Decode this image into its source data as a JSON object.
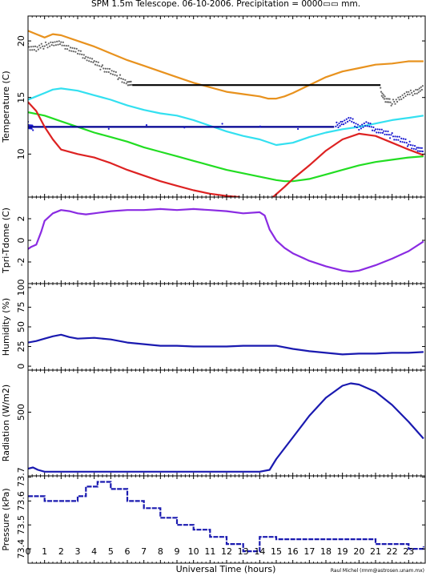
{
  "chart_data": {
    "type": "line",
    "title": "SPM 1.5m Telescope. 06-10-2006. Precipitation = 0000▭▭ mm.",
    "xlabel": "Universal Time (hours)",
    "credit": "Raul Michel (rmm@astrosen.unam.mx)",
    "xlim": [
      0,
      24
    ],
    "xticks": [
      "0",
      "1",
      "2",
      "3",
      "4",
      "5",
      "6",
      "7",
      "8",
      "9",
      "10",
      "11",
      "12",
      "13",
      "14",
      "15",
      "16",
      "17",
      "18",
      "19",
      "20",
      "21",
      "22",
      "23"
    ],
    "panels": [
      {
        "id": "temperature",
        "ylabel": "Temperature (C)",
        "ylim": [
          6.2,
          22.2
        ],
        "yticks": [
          "10",
          "15",
          "20"
        ],
        "ytick_values": [
          10,
          15,
          20
        ],
        "series": [
          {
            "color": "#e8921e",
            "style": "line",
            "x": [
              0,
              0.5,
              1,
              1.5,
              2,
              3,
              4,
              5,
              6,
              7,
              8,
              9,
              10,
              11,
              12,
              13,
              14,
              14.5,
              15,
              15.5,
              16,
              17,
              18,
              19,
              20,
              21,
              22,
              23,
              23.9
            ],
            "y": [
              20.9,
              20.6,
              20.3,
              20.6,
              20.5,
              20.0,
              19.5,
              18.9,
              18.3,
              17.8,
              17.3,
              16.8,
              16.3,
              15.9,
              15.5,
              15.3,
              15.1,
              14.9,
              14.9,
              15.1,
              15.4,
              16.1,
              16.8,
              17.3,
              17.6,
              17.9,
              18.0,
              18.2,
              18.2
            ]
          },
          {
            "color": "#666666",
            "style": "scatter",
            "x": [
              0,
              0.5,
              1,
              1.5,
              2,
              2.5,
              3,
              3.5,
              4,
              4.5,
              5,
              5.5,
              6,
              6.3
            ],
            "y": [
              19.5,
              19.3,
              19.6,
              19.8,
              19.7,
              19.4,
              19.0,
              18.6,
              18.1,
              17.6,
              17.3,
              16.8,
              16.3,
              16.1
            ]
          },
          {
            "color": "#000000",
            "style": "line",
            "x": [
              6.3,
              21.3
            ],
            "y": [
              16.1,
              16.1
            ]
          },
          {
            "color": "#666666",
            "style": "scatter",
            "x": [
              21.3,
              21.6,
              22,
              22.5,
              23,
              23.5,
              23.9
            ],
            "y": [
              15.6,
              14.8,
              14.5,
              15.0,
              15.3,
              15.6,
              15.8
            ]
          },
          {
            "color": "#33e0f0",
            "style": "line",
            "x": [
              0,
              0.5,
              1,
              1.5,
              2,
              3,
              4,
              5,
              6,
              7,
              8,
              9,
              10,
              11,
              12,
              13,
              14,
              15,
              16,
              17,
              18,
              19,
              20,
              21,
              22,
              23,
              23.9
            ],
            "y": [
              14.8,
              15.1,
              15.4,
              15.7,
              15.8,
              15.6,
              15.2,
              14.8,
              14.3,
              13.9,
              13.6,
              13.4,
              13.0,
              12.5,
              12.0,
              11.6,
              11.3,
              10.8,
              11.0,
              11.5,
              11.9,
              12.2,
              12.4,
              12.7,
              13.0,
              13.2,
              13.4
            ]
          },
          {
            "color": "#22dd22",
            "style": "line",
            "x": [
              0,
              1,
              2,
              3,
              4,
              5,
              6,
              7,
              8,
              9,
              10,
              11,
              12,
              13,
              14,
              15,
              15.5,
              16,
              17,
              18,
              19,
              20,
              21,
              22,
              23,
              23.9
            ],
            "y": [
              13.7,
              13.4,
              12.9,
              12.4,
              11.9,
              11.5,
              11.1,
              10.6,
              10.2,
              9.8,
              9.4,
              9.0,
              8.6,
              8.3,
              8.0,
              7.7,
              7.6,
              7.6,
              7.8,
              8.2,
              8.6,
              9.0,
              9.3,
              9.5,
              9.7,
              9.8
            ]
          },
          {
            "color": "#000090",
            "style": "line",
            "x": [
              0,
              18.5
            ],
            "y": [
              12.4,
              12.4
            ]
          },
          {
            "color": "#1a1ad0",
            "style": "scatter",
            "x": [
              0,
              0.3,
              18.6,
              19,
              19.5,
              20,
              20.5,
              21,
              21.5,
              22,
              22.5,
              23,
              23.5,
              23.9
            ],
            "y": [
              12.6,
              12.3,
              12.5,
              12.8,
              13.0,
              12.4,
              12.6,
              12.2,
              11.9,
              11.6,
              11.3,
              10.9,
              10.5,
              10.2
            ]
          },
          {
            "color": "#dd2222",
            "style": "line",
            "x": [
              0,
              0.5,
              1,
              1.5,
              2,
              3,
              4,
              5,
              6,
              7,
              8,
              9,
              10,
              11,
              12,
              12.8
            ],
            "y": [
              14.6,
              13.8,
              12.4,
              11.3,
              10.4,
              10.0,
              9.7,
              9.2,
              8.6,
              8.1,
              7.6,
              7.2,
              6.8,
              6.5,
              6.3,
              6.2
            ]
          },
          {
            "color": "#dd2222",
            "style": "line",
            "x": [
              14.8,
              15.5,
              16,
              17,
              18,
              19,
              20,
              21,
              22,
              23,
              23.9
            ],
            "y": [
              6.2,
              7.1,
              7.8,
              9.0,
              10.3,
              11.3,
              11.8,
              11.6,
              11.0,
              10.4,
              9.9
            ]
          }
        ]
      },
      {
        "id": "tpri-tdome",
        "ylabel": "Tpri-Tdome (C)",
        "ylim": [
          -4,
          4
        ],
        "yticks": [
          "-2",
          "0",
          "2"
        ],
        "ytick_values": [
          -2,
          0,
          2
        ],
        "series": [
          {
            "color": "#8a2be2",
            "style": "line",
            "x": [
              0,
              0.2,
              0.5,
              0.8,
              1,
              1.5,
              2,
              2.5,
              3,
              3.5,
              4,
              5,
              6,
              7,
              8,
              9,
              10,
              11,
              12,
              13,
              14,
              14.3,
              14.6,
              15,
              15.5,
              16,
              17,
              18,
              18.5,
              19,
              19.5,
              20,
              21,
              22,
              23,
              23.9
            ],
            "y": [
              -0.8,
              -0.6,
              -0.4,
              0.8,
              1.8,
              2.5,
              2.8,
              2.7,
              2.5,
              2.4,
              2.5,
              2.7,
              2.8,
              2.8,
              2.9,
              2.8,
              2.9,
              2.8,
              2.7,
              2.5,
              2.6,
              2.3,
              1.0,
              0.0,
              -0.7,
              -1.2,
              -1.9,
              -2.4,
              -2.6,
              -2.8,
              -2.9,
              -2.8,
              -2.3,
              -1.7,
              -1.0,
              -0.1
            ]
          }
        ]
      },
      {
        "id": "humidity",
        "ylabel": "Humidity (%)",
        "ylim": [
          -5,
          105
        ],
        "yticks": [
          "0",
          "25",
          "50",
          "75",
          "100"
        ],
        "ytick_values": [
          0,
          25,
          50,
          75,
          100
        ],
        "series": [
          {
            "color": "#1a1ab0",
            "style": "line",
            "x": [
              0,
              0.5,
              1,
              1.5,
              2,
              2.5,
              3,
              4,
              5,
              6,
              7,
              8,
              9,
              10,
              11,
              12,
              13,
              14,
              15,
              16,
              17,
              18,
              19,
              20,
              21,
              22,
              23,
              23.9
            ],
            "y": [
              30,
              32,
              35,
              38,
              40,
              37,
              35,
              36,
              34,
              30,
              28,
              26,
              26,
              25,
              25,
              25,
              26,
              26,
              26,
              22,
              19,
              17,
              15,
              16,
              16,
              17,
              17,
              18
            ]
          }
        ]
      },
      {
        "id": "radiation",
        "ylabel": "Radiation (W/m2)",
        "ylim": [
          -30,
          850
        ],
        "yticks": [
          "500"
        ],
        "ytick_values": [
          500
        ],
        "series": [
          {
            "color": "#1a1ab0",
            "style": "line",
            "x": [
              0,
              0.3,
              0.6,
              1,
              2,
              4,
              6,
              8,
              10,
              12,
              14,
              14.6,
              15,
              16,
              17,
              18,
              19,
              19.5,
              20,
              21,
              22,
              23,
              23.9
            ],
            "y": [
              30,
              40,
              20,
              5,
              5,
              5,
              5,
              5,
              5,
              5,
              5,
              20,
              110,
              290,
              470,
              620,
              720,
              740,
              730,
              670,
              560,
              420,
              280
            ]
          }
        ]
      },
      {
        "id": "pressure",
        "ylabel": "Pressure (kPa)",
        "ylim": [
          73.34,
          73.705
        ],
        "yticks": [
          "73.4",
          "73.5",
          "73.6",
          "73.7"
        ],
        "ytick_values": [
          73.4,
          73.5,
          73.6,
          73.7
        ],
        "series": [
          {
            "color": "#1a1ab0",
            "style": "steps",
            "x": [
              0,
              1,
              2,
              3,
              3.5,
              4.2,
              5,
              6,
              7,
              8,
              9,
              10,
              11,
              12,
              13,
              14,
              15,
              16,
              17,
              18,
              19,
              20,
              21,
              22,
              23,
              23.9
            ],
            "y": [
              73.62,
              73.6,
              73.6,
              73.62,
              73.66,
              73.68,
              73.65,
              73.6,
              73.57,
              73.53,
              73.5,
              73.48,
              73.45,
              73.42,
              73.39,
              73.45,
              73.44,
              73.44,
              73.44,
              73.44,
              73.44,
              73.44,
              73.42,
              73.42,
              73.4,
              73.41
            ]
          }
        ]
      }
    ]
  }
}
